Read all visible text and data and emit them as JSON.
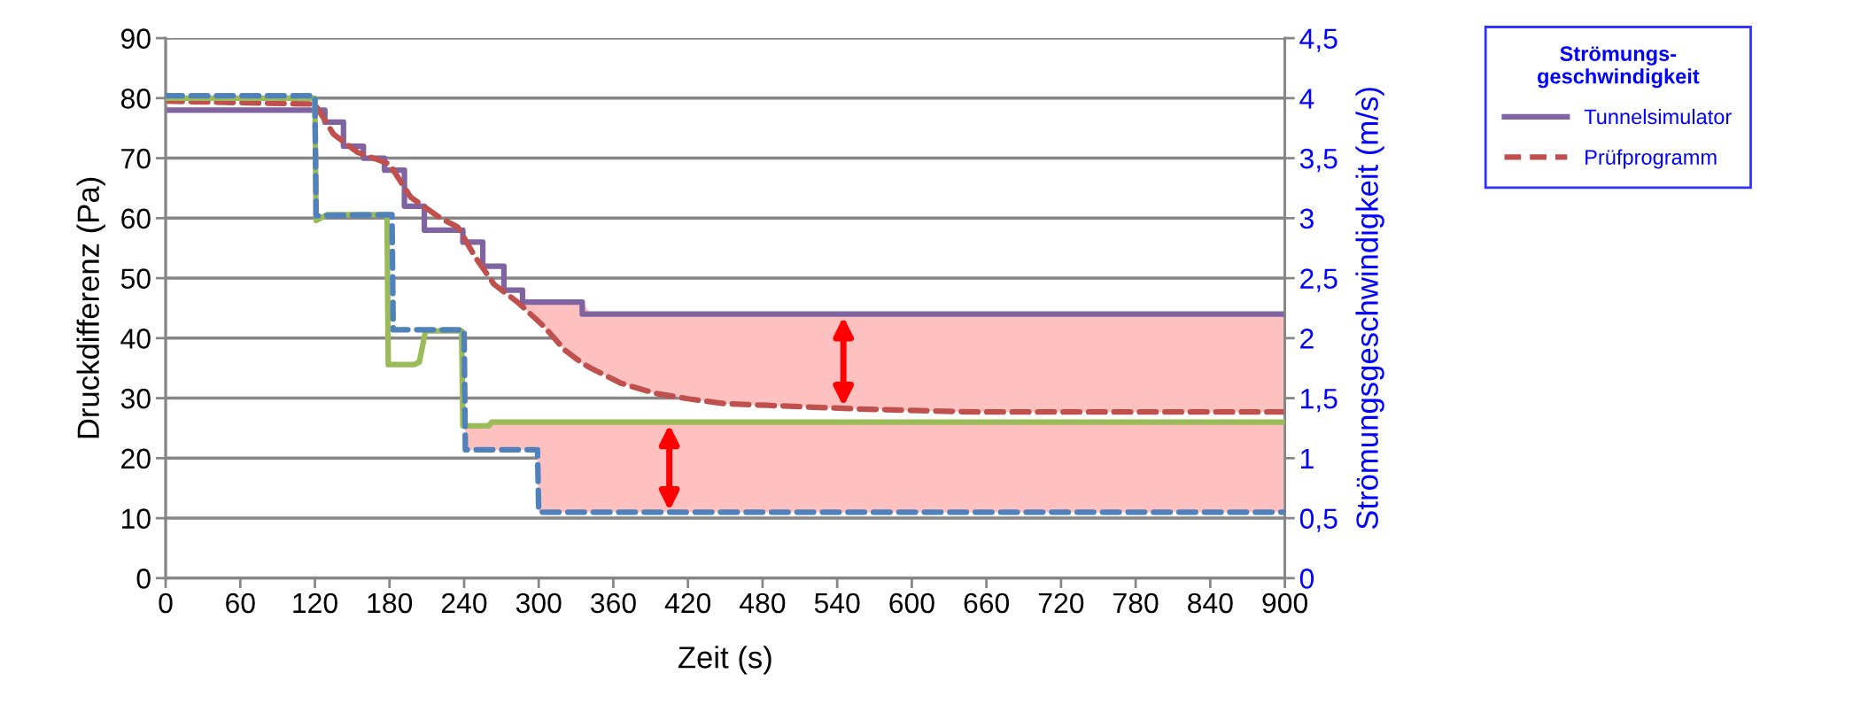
{
  "chart_data": {
    "type": "line",
    "xlabel": "Zeit (s)",
    "ylabel": "Druckdifferenz (Pa)",
    "y2label": "Strömungsgeschwindigkeit (m/s)",
    "legend_title": "Strömungs-\ngeschwindigkeit",
    "xlim": [
      0,
      900
    ],
    "xticks": [
      0,
      60,
      120,
      180,
      240,
      300,
      360,
      420,
      480,
      540,
      600,
      660,
      720,
      780,
      840,
      900
    ],
    "ylim": [
      0,
      90
    ],
    "yticks": [
      0,
      10,
      20,
      30,
      40,
      50,
      60,
      70,
      80,
      90
    ],
    "y2lim": [
      0,
      4.5
    ],
    "y2ticks": [
      0,
      {
        "value": 0.5,
        "label": "0,5"
      },
      1,
      {
        "value": 1.5,
        "label": "1,5"
      },
      2,
      {
        "value": 2.5,
        "label": "2,5"
      },
      3,
      {
        "value": 3.5,
        "label": "3,5"
      },
      4,
      {
        "value": 4.5,
        "label": "4,5"
      }
    ],
    "grid": "y",
    "legend": "top right",
    "series": [
      {
        "name": "Tunnelsimulator",
        "type": "step",
        "color": "#8064a2",
        "line_style": "solid",
        "x": [
          0,
          128,
          143,
          159,
          176,
          192,
          208,
          239,
          255,
          272,
          287,
          335,
          900
        ],
        "values": [
          78,
          76,
          72,
          70,
          68,
          62,
          58,
          56,
          52,
          48,
          46,
          44,
          44
        ]
      },
      {
        "name": "Prüfprogramm",
        "color": "#c0504d",
        "line_style": "dashed",
        "x": [
          0,
          120,
          135,
          154,
          180,
          197,
          221,
          235,
          249,
          264,
          283,
          304,
          321,
          335,
          342,
          366,
          394,
          420,
          449,
          484,
          558,
          650,
          900
        ],
        "values": [
          79.5,
          79,
          74,
          71,
          69,
          63.5,
          60,
          58.5,
          53.5,
          49,
          46,
          42,
          38,
          35.8,
          35,
          32.5,
          30.8,
          29.9,
          29.1,
          28.8,
          28.2,
          27.7,
          27.7
        ],
        "lower": [
          null,
          null,
          null,
          null,
          null,
          null,
          null,
          null,
          null,
          null,
          46,
          42,
          38,
          35.8,
          35,
          32.5,
          30.8,
          29.9,
          29.1,
          28.8,
          28.2,
          27.7,
          27.7
        ],
        "upper": [
          null,
          null,
          null,
          null,
          null,
          null,
          null,
          null,
          null,
          null,
          46,
          46,
          46,
          46,
          44,
          44,
          44,
          44,
          44,
          44,
          44,
          44,
          44
        ]
      },
      {
        "axis": "y2",
        "color": "#9bbb59",
        "line_style": "solid",
        "x": [
          0,
          120,
          121,
          130,
          178,
          179,
          200,
          204,
          209,
          238,
          239,
          260,
          262,
          900
        ],
        "values": [
          4.0,
          4.0,
          2.98,
          3.03,
          3.03,
          1.78,
          1.78,
          1.8,
          2.06,
          2.06,
          1.27,
          1.27,
          1.3,
          1.3
        ]
      },
      {
        "axis": "y2",
        "color": "#4f81bd",
        "line_style": "dashed",
        "x": [
          0,
          120,
          121,
          182,
          183,
          240,
          241,
          262,
          299,
          300,
          900
        ],
        "values": [
          4.02,
          4.02,
          3.02,
          3.03,
          2.07,
          2.07,
          1.07,
          1.07,
          1.07,
          0.55,
          0.55
        ],
        "lower": [
          null,
          null,
          null,
          null,
          null,
          null,
          1.07,
          1.07,
          1.07,
          0.55,
          0.55
        ],
        "upper": [
          null,
          null,
          null,
          null,
          null,
          null,
          1.27,
          1.3,
          1.3,
          1.3,
          1.3
        ]
      }
    ]
  }
}
